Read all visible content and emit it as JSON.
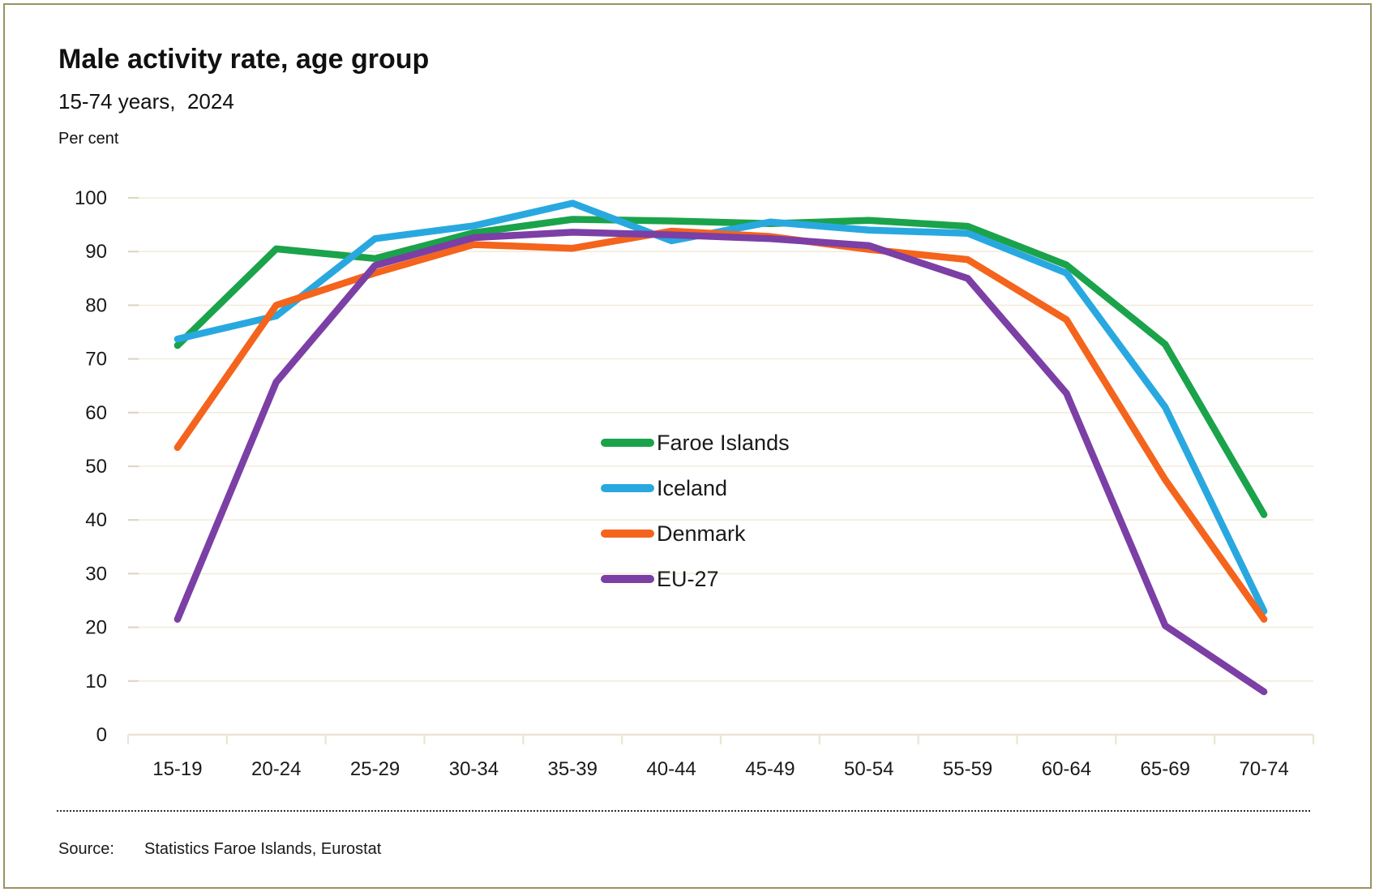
{
  "header": {
    "title": "Male activity rate, age group",
    "subtitle": "15-74 years,  2024",
    "unit_label": "Per cent"
  },
  "source": {
    "label": "Source:",
    "text": "Statistics Faroe Islands, Eurostat"
  },
  "colors": {
    "text": "#1a1a1a",
    "gridline": "#f1ecdc",
    "tick": "#ddd7c1",
    "axis": "#eae5d3",
    "frame_border": "#9a9464"
  },
  "chart_data": {
    "type": "line",
    "title": "Male activity rate, age group",
    "subtitle": "15-74 years,  2024",
    "ylabel": "Per cent",
    "xlabel": "",
    "ylim": [
      0,
      100
    ],
    "yticks": [
      0,
      10,
      20,
      30,
      40,
      50,
      60,
      70,
      80,
      90,
      100
    ],
    "grid": "horizontal",
    "legend_position": "inside-center-right",
    "categories": [
      "15-19",
      "20-24",
      "25-29",
      "30-34",
      "35-39",
      "40-44",
      "45-49",
      "50-54",
      "55-59",
      "60-64",
      "65-69",
      "70-74"
    ],
    "series": [
      {
        "name": "Faroe Islands",
        "color": "#1aa34a",
        "values": [
          72.5,
          90.5,
          88.7,
          93.5,
          96.0,
          95.7,
          95.2,
          95.8,
          94.7,
          87.5,
          72.7,
          41.0
        ]
      },
      {
        "name": "Iceland",
        "color": "#29a8e0",
        "values": [
          73.7,
          78.0,
          92.4,
          94.8,
          99.0,
          92.0,
          95.5,
          94.0,
          93.4,
          86.0,
          61.0,
          23.0
        ]
      },
      {
        "name": "Denmark",
        "color": "#f4641c",
        "values": [
          53.5,
          80.0,
          86.0,
          91.3,
          90.6,
          93.8,
          92.8,
          90.4,
          88.5,
          77.3,
          47.5,
          21.5
        ]
      },
      {
        "name": "EU-27",
        "color": "#7b3fa5",
        "values": [
          21.5,
          65.7,
          87.4,
          92.6,
          93.6,
          93.1,
          92.4,
          91.1,
          85.0,
          63.6,
          20.3,
          8.0
        ]
      }
    ]
  }
}
